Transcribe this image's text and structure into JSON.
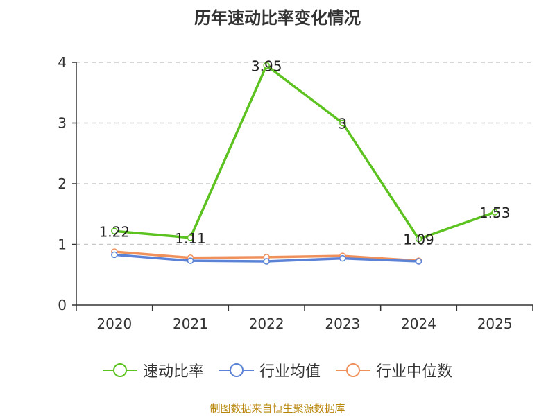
{
  "chart_data": {
    "type": "line",
    "title": "历年速动比率变化情况",
    "categories": [
      "2020",
      "2021",
      "2022",
      "2023",
      "2024",
      "2025"
    ],
    "ylim": [
      0,
      4
    ],
    "yticks": [
      0,
      1,
      2,
      3,
      4
    ],
    "grid": true,
    "legend_position": "bottom",
    "series": [
      {
        "name": "速动比率",
        "color": "#5cc21f",
        "values": [
          1.22,
          1.11,
          3.95,
          3,
          1.09,
          1.53
        ],
        "labels": [
          "1.22",
          "1.11",
          "3.95",
          "3",
          "1.09",
          "1.53"
        ]
      },
      {
        "name": "行业均值",
        "color": "#5b82d6",
        "values": [
          0.83,
          0.73,
          0.72,
          0.77,
          0.72,
          null
        ]
      },
      {
        "name": "行业中位数",
        "color": "#f0915c",
        "values": [
          0.88,
          0.78,
          0.79,
          0.81,
          0.73,
          null
        ]
      }
    ]
  },
  "source_note": "制图数据来自恒生聚源数据库"
}
